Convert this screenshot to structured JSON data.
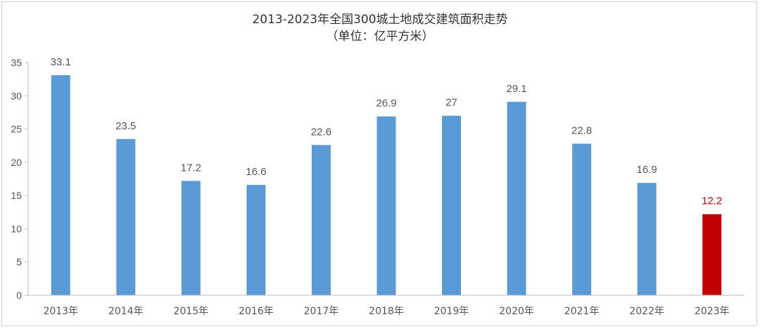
{
  "chart_data": {
    "type": "bar",
    "title": "2013-2023年全国300城土地成交建筑面积走势",
    "subtitle": "（单位：亿平方米）",
    "categories": [
      "2013年",
      "2014年",
      "2015年",
      "2016年",
      "2017年",
      "2018年",
      "2019年",
      "2020年",
      "2021年",
      "2022年",
      "2023年"
    ],
    "values": [
      33.1,
      23.5,
      17.2,
      16.6,
      22.6,
      26.9,
      27,
      29.1,
      22.8,
      16.9,
      12.2
    ],
    "data_labels": [
      "33.1",
      "23.5",
      "17.2",
      "16.6",
      "22.6",
      "26.9",
      "27",
      "29.1",
      "22.8",
      "16.9",
      "12.2"
    ],
    "ylim": [
      0,
      35
    ],
    "yticks": [
      "0",
      "5",
      "10",
      "15",
      "20",
      "25",
      "30",
      "35"
    ],
    "grid": false,
    "legend": "none",
    "colors": {
      "bar": "#5b9bd5",
      "highlight_bar": "#c00000",
      "highlight_label": "#c00000",
      "label": "#555555",
      "axis": "#bfbfbf"
    },
    "highlight_index": 10
  }
}
